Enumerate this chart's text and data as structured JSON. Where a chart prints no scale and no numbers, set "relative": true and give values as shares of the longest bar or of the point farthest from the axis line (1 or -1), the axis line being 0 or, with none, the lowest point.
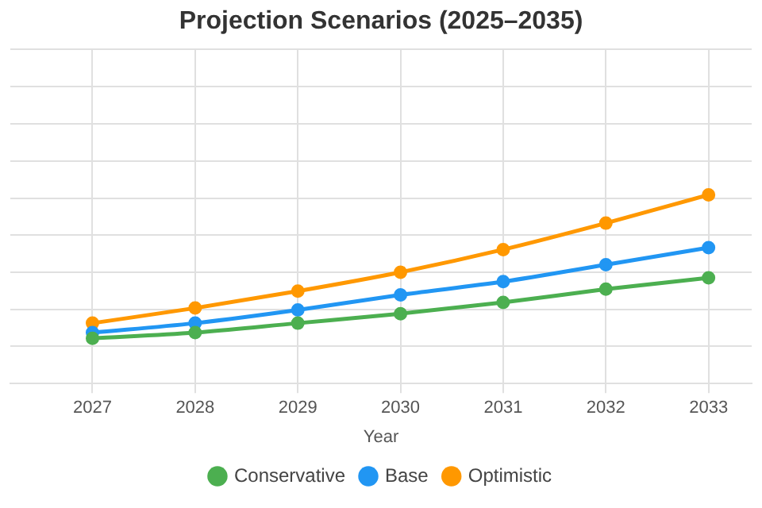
{
  "chart_data": {
    "type": "line",
    "title": "Projection Scenarios (2025–2035)",
    "xlabel": "Year",
    "x": [
      2027,
      2028,
      2029,
      2030,
      2031,
      2032,
      2033
    ],
    "xlim": [
      2026.2,
      2033.42
    ],
    "xticks": [
      2027,
      2028,
      2029,
      2030,
      2031,
      2032,
      2033
    ],
    "relative": true,
    "series": [
      {
        "name": "Conservative",
        "color": "#4caf50",
        "values": [
          0.24,
          0.27,
          0.32,
          0.37,
          0.43,
          0.5,
          0.56
        ]
      },
      {
        "name": "Base",
        "color": "#2196f3",
        "values": [
          0.27,
          0.32,
          0.39,
          0.47,
          0.54,
          0.63,
          0.72
        ]
      },
      {
        "name": "Optimistic",
        "color": "#ff9800",
        "values": [
          0.32,
          0.4,
          0.49,
          0.59,
          0.71,
          0.85,
          1
        ]
      }
    ],
    "grid": true,
    "legend": "bottom",
    "marker": "circle",
    "line_style": "solid"
  }
}
